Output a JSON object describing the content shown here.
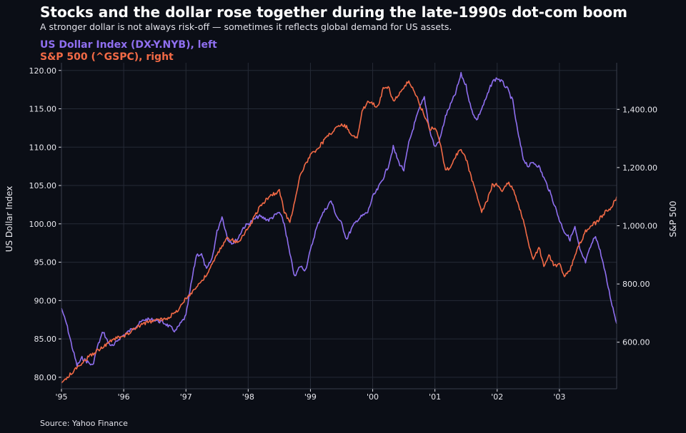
{
  "header": {
    "title": "Stocks and the dollar rose together during the late-1990s dot-com boom",
    "subtitle": "A stronger dollar is not always risk-off — sometimes it reflects global demand for US assets."
  },
  "legend": {
    "series1": "US Dollar Index (DX-Y.NYB), left",
    "series2": "S&P 500 (^GSPC), right"
  },
  "footer": {
    "source": "Source: Yahoo Finance"
  },
  "colors": {
    "background": "#0b0e16",
    "grid": "#252a36",
    "dollar": "#8f6ff0",
    "sp500": "#f26a46"
  },
  "chart_data": {
    "type": "line",
    "grid": true,
    "x_axis": {
      "range": [
        1995.0,
        2003.92
      ],
      "tick_values": [
        1995,
        1996,
        1997,
        1998,
        1999,
        2000,
        2001,
        2002,
        2003
      ],
      "tick_labels": [
        "'95",
        "'96",
        "'97",
        "'98",
        "'99",
        "'00",
        "'01",
        "'02",
        "'03"
      ]
    },
    "y_left": {
      "label": "US Dollar Index",
      "range": [
        78.5,
        121.0
      ],
      "ticks": [
        80,
        85,
        90,
        95,
        100,
        105,
        110,
        115,
        120
      ],
      "tick_labels": [
        "80.00",
        "85.00",
        "90.00",
        "95.00",
        "100.00",
        "105.00",
        "110.00",
        "115.00",
        "120.00"
      ]
    },
    "y_right": {
      "label": "S&P 500",
      "range": [
        440,
        1560
      ],
      "ticks": [
        600,
        800,
        1000,
        1200,
        1400
      ],
      "tick_labels": [
        "600.00",
        "800.00",
        "1,000.00",
        "1,200.00",
        "1,400.00"
      ]
    },
    "series": [
      {
        "name": "US Dollar Index (DX-Y.NYB), left",
        "axis": "left",
        "x": [
          1995.0,
          1995.08,
          1995.17,
          1995.25,
          1995.33,
          1995.42,
          1995.5,
          1995.58,
          1995.67,
          1995.75,
          1995.83,
          1995.92,
          1996.0,
          1996.17,
          1996.33,
          1996.5,
          1996.67,
          1996.83,
          1997.0,
          1997.08,
          1997.17,
          1997.25,
          1997.33,
          1997.42,
          1997.5,
          1997.58,
          1997.67,
          1997.75,
          1997.83,
          1997.92,
          1998.0,
          1998.17,
          1998.33,
          1998.5,
          1998.58,
          1998.67,
          1998.75,
          1998.83,
          1998.92,
          1999.0,
          1999.08,
          1999.17,
          1999.25,
          1999.33,
          1999.42,
          1999.5,
          1999.58,
          1999.67,
          1999.75,
          1999.83,
          1999.92,
          2000.0,
          2000.08,
          2000.17,
          2000.25,
          2000.33,
          2000.42,
          2000.5,
          2000.58,
          2000.67,
          2000.75,
          2000.83,
          2000.92,
          2001.0,
          2001.08,
          2001.17,
          2001.25,
          2001.33,
          2001.42,
          2001.5,
          2001.58,
          2001.67,
          2001.75,
          2001.83,
          2001.92,
          2002.0,
          2002.08,
          2002.17,
          2002.25,
          2002.33,
          2002.42,
          2002.5,
          2002.58,
          2002.67,
          2002.75,
          2002.83,
          2002.92,
          2003.0,
          2003.08,
          2003.17,
          2003.25,
          2003.33,
          2003.42,
          2003.5,
          2003.58,
          2003.67,
          2003.75,
          2003.83,
          2003.92
        ],
        "values": [
          89.0,
          87.0,
          84.0,
          81.5,
          82.5,
          82.0,
          81.5,
          84.0,
          86.0,
          84.5,
          84.0,
          85.0,
          85.5,
          86.5,
          87.5,
          87.5,
          87.0,
          86.0,
          88.0,
          92.0,
          96.0,
          96.0,
          94.0,
          95.5,
          99.0,
          101.0,
          98.0,
          97.5,
          98.0,
          99.5,
          100.0,
          101.0,
          100.5,
          101.5,
          100.0,
          96.0,
          93.0,
          94.5,
          94.0,
          96.5,
          99.0,
          101.0,
          102.0,
          103.0,
          101.0,
          100.0,
          98.0,
          99.5,
          100.5,
          101.0,
          101.5,
          103.5,
          104.5,
          106.0,
          107.5,
          110.0,
          108.0,
          107.0,
          110.5,
          113.0,
          115.0,
          116.5,
          112.0,
          110.0,
          111.0,
          114.0,
          115.5,
          117.0,
          119.5,
          118.0,
          115.0,
          113.5,
          115.0,
          116.5,
          118.5,
          119.0,
          118.5,
          117.5,
          116.0,
          112.0,
          108.5,
          107.5,
          108.0,
          107.5,
          106.0,
          104.5,
          102.5,
          100.5,
          99.0,
          98.0,
          99.5,
          96.5,
          95.0,
          97.0,
          98.5,
          96.0,
          93.0,
          90.0,
          87.0
        ]
      },
      {
        "name": "S&P 500 (^GSPC), right",
        "axis": "right",
        "x": [
          1995.0,
          1995.17,
          1995.33,
          1995.5,
          1995.67,
          1995.83,
          1996.0,
          1996.17,
          1996.33,
          1996.5,
          1996.67,
          1996.83,
          1997.0,
          1997.17,
          1997.33,
          1997.5,
          1997.58,
          1997.67,
          1997.75,
          1997.83,
          1997.92,
          1998.0,
          1998.17,
          1998.33,
          1998.5,
          1998.58,
          1998.67,
          1998.75,
          1998.83,
          1998.92,
          1999.0,
          1999.17,
          1999.33,
          1999.5,
          1999.58,
          1999.67,
          1999.75,
          1999.83,
          1999.92,
          2000.0,
          2000.08,
          2000.17,
          2000.25,
          2000.33,
          2000.42,
          2000.5,
          2000.58,
          2000.67,
          2000.75,
          2000.83,
          2000.92,
          2001.0,
          2001.08,
          2001.17,
          2001.25,
          2001.33,
          2001.42,
          2001.5,
          2001.58,
          2001.67,
          2001.75,
          2001.83,
          2001.92,
          2002.0,
          2002.08,
          2002.17,
          2002.25,
          2002.33,
          2002.42,
          2002.5,
          2002.58,
          2002.67,
          2002.75,
          2002.83,
          2002.92,
          2003.0,
          2003.08,
          2003.17,
          2003.25,
          2003.33,
          2003.42,
          2003.5,
          2003.58,
          2003.67,
          2003.75,
          2003.83,
          2003.92
        ],
        "values": [
          460,
          495,
          530,
          560,
          585,
          610,
          620,
          645,
          665,
          675,
          680,
          700,
          750,
          790,
          830,
          900,
          930,
          960,
          950,
          940,
          970,
          990,
          1060,
          1100,
          1120,
          1050,
          1010,
          1090,
          1170,
          1210,
          1240,
          1280,
          1320,
          1350,
          1340,
          1310,
          1300,
          1390,
          1430,
          1420,
          1410,
          1470,
          1480,
          1430,
          1450,
          1470,
          1500,
          1460,
          1420,
          1380,
          1330,
          1340,
          1290,
          1190,
          1200,
          1240,
          1260,
          1230,
          1170,
          1110,
          1050,
          1080,
          1140,
          1140,
          1120,
          1150,
          1130,
          1080,
          1020,
          940,
          880,
          930,
          860,
          900,
          860,
          870,
          830,
          850,
          900,
          940,
          980,
          1000,
          1010,
          1030,
          1050,
          1060,
          1100
        ]
      }
    ]
  }
}
